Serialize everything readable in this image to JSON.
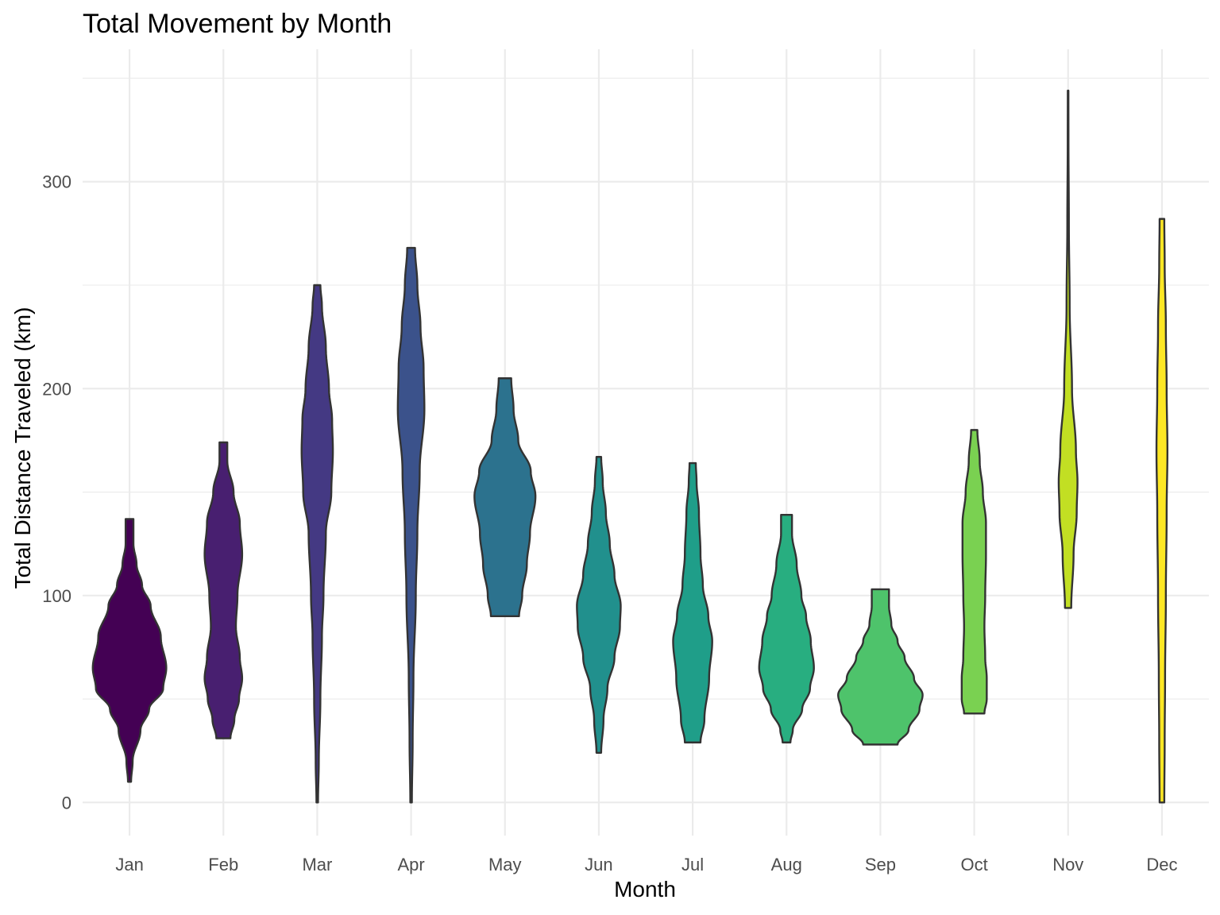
{
  "chart_data": {
    "type": "violin",
    "title": "Total Movement by Month",
    "xlabel": "Month",
    "ylabel": "Total Distance Traveled (km)",
    "ylim": [
      -16,
      364
    ],
    "yticks": [
      0,
      100,
      200,
      300
    ],
    "grid": true,
    "legend": "none",
    "categories": [
      "Jan",
      "Feb",
      "Mar",
      "Apr",
      "May",
      "Jun",
      "Jul",
      "Aug",
      "Sep",
      "Oct",
      "Nov",
      "Dec"
    ],
    "colors": [
      "#440154",
      "#481f70",
      "#443983",
      "#3b528b",
      "#2c728e",
      "#21908d",
      "#1f9e89",
      "#28ae80",
      "#4ec36b",
      "#7ad151",
      "#c2df23",
      "#fde725"
    ],
    "series": [
      {
        "category": "Jan",
        "min": 10,
        "max": 137,
        "profile": [
          [
            10,
            0.02
          ],
          [
            20,
            0.04
          ],
          [
            35,
            0.14
          ],
          [
            45,
            0.25
          ],
          [
            55,
            0.43
          ],
          [
            65,
            0.47
          ],
          [
            80,
            0.4
          ],
          [
            95,
            0.27
          ],
          [
            105,
            0.16
          ],
          [
            115,
            0.09
          ],
          [
            125,
            0.05
          ],
          [
            137,
            0.05
          ]
        ]
      },
      {
        "category": "Feb",
        "min": 31,
        "max": 174,
        "profile": [
          [
            31,
            0.09
          ],
          [
            40,
            0.14
          ],
          [
            50,
            0.2
          ],
          [
            60,
            0.24
          ],
          [
            70,
            0.21
          ],
          [
            85,
            0.16
          ],
          [
            100,
            0.18
          ],
          [
            120,
            0.24
          ],
          [
            135,
            0.21
          ],
          [
            150,
            0.13
          ],
          [
            165,
            0.05
          ],
          [
            174,
            0.05
          ]
        ]
      },
      {
        "category": "Mar",
        "min": 0,
        "max": 250,
        "profile": [
          [
            0,
            0.01
          ],
          [
            20,
            0.02
          ],
          [
            50,
            0.04
          ],
          [
            80,
            0.06
          ],
          [
            100,
            0.08
          ],
          [
            130,
            0.11
          ],
          [
            150,
            0.18
          ],
          [
            170,
            0.2
          ],
          [
            185,
            0.19
          ],
          [
            200,
            0.15
          ],
          [
            220,
            0.11
          ],
          [
            240,
            0.06
          ],
          [
            250,
            0.04
          ]
        ]
      },
      {
        "category": "Apr",
        "min": 0,
        "max": 268,
        "profile": [
          [
            0,
            0.01
          ],
          [
            30,
            0.02
          ],
          [
            60,
            0.03
          ],
          [
            100,
            0.06
          ],
          [
            130,
            0.08
          ],
          [
            160,
            0.11
          ],
          [
            190,
            0.17
          ],
          [
            210,
            0.16
          ],
          [
            230,
            0.12
          ],
          [
            250,
            0.08
          ],
          [
            268,
            0.05
          ]
        ]
      },
      {
        "category": "May",
        "min": 90,
        "max": 205,
        "profile": [
          [
            90,
            0.18
          ],
          [
            100,
            0.22
          ],
          [
            115,
            0.28
          ],
          [
            130,
            0.32
          ],
          [
            148,
            0.39
          ],
          [
            160,
            0.33
          ],
          [
            175,
            0.17
          ],
          [
            190,
            0.11
          ],
          [
            205,
            0.08
          ]
        ]
      },
      {
        "category": "Jun",
        "min": 24,
        "max": 167,
        "profile": [
          [
            24,
            0.03
          ],
          [
            40,
            0.06
          ],
          [
            55,
            0.11
          ],
          [
            70,
            0.2
          ],
          [
            85,
            0.27
          ],
          [
            95,
            0.28
          ],
          [
            110,
            0.2
          ],
          [
            125,
            0.14
          ],
          [
            140,
            0.09
          ],
          [
            155,
            0.05
          ],
          [
            167,
            0.03
          ]
        ]
      },
      {
        "category": "Jul",
        "min": 29,
        "max": 164,
        "profile": [
          [
            29,
            0.1
          ],
          [
            40,
            0.15
          ],
          [
            60,
            0.21
          ],
          [
            78,
            0.25
          ],
          [
            90,
            0.2
          ],
          [
            105,
            0.13
          ],
          [
            120,
            0.1
          ],
          [
            140,
            0.08
          ],
          [
            155,
            0.05
          ],
          [
            164,
            0.04
          ]
        ]
      },
      {
        "category": "Aug",
        "min": 29,
        "max": 139,
        "profile": [
          [
            29,
            0.05
          ],
          [
            35,
            0.08
          ],
          [
            45,
            0.2
          ],
          [
            55,
            0.3
          ],
          [
            65,
            0.35
          ],
          [
            78,
            0.31
          ],
          [
            90,
            0.25
          ],
          [
            100,
            0.19
          ],
          [
            115,
            0.13
          ],
          [
            130,
            0.07
          ],
          [
            139,
            0.07
          ]
        ]
      },
      {
        "category": "Sep",
        "min": 28,
        "max": 103,
        "profile": [
          [
            28,
            0.22
          ],
          [
            35,
            0.36
          ],
          [
            45,
            0.5
          ],
          [
            52,
            0.54
          ],
          [
            60,
            0.43
          ],
          [
            70,
            0.31
          ],
          [
            78,
            0.22
          ],
          [
            86,
            0.14
          ],
          [
            95,
            0.11
          ],
          [
            103,
            0.11
          ]
        ]
      },
      {
        "category": "Oct",
        "min": 43,
        "max": 180,
        "profile": [
          [
            43,
            0.13
          ],
          [
            50,
            0.16
          ],
          [
            60,
            0.16
          ],
          [
            70,
            0.14
          ],
          [
            85,
            0.13
          ],
          [
            100,
            0.14
          ],
          [
            120,
            0.15
          ],
          [
            135,
            0.15
          ],
          [
            150,
            0.11
          ],
          [
            165,
            0.07
          ],
          [
            180,
            0.04
          ]
        ]
      },
      {
        "category": "Nov",
        "min": 94,
        "max": 344,
        "profile": [
          [
            94,
            0.04
          ],
          [
            120,
            0.07
          ],
          [
            140,
            0.11
          ],
          [
            155,
            0.12
          ],
          [
            170,
            0.1
          ],
          [
            200,
            0.05
          ],
          [
            240,
            0.02
          ],
          [
            280,
            0.01
          ],
          [
            320,
            0.005
          ],
          [
            344,
            0.004
          ]
        ]
      },
      {
        "category": "Dec",
        "min": 0,
        "max": 282,
        "profile": [
          [
            0,
            0.03
          ],
          [
            30,
            0.035
          ],
          [
            60,
            0.04
          ],
          [
            100,
            0.05
          ],
          [
            140,
            0.06
          ],
          [
            170,
            0.07
          ],
          [
            200,
            0.06
          ],
          [
            230,
            0.05
          ],
          [
            260,
            0.035
          ],
          [
            282,
            0.03
          ]
        ]
      }
    ]
  }
}
